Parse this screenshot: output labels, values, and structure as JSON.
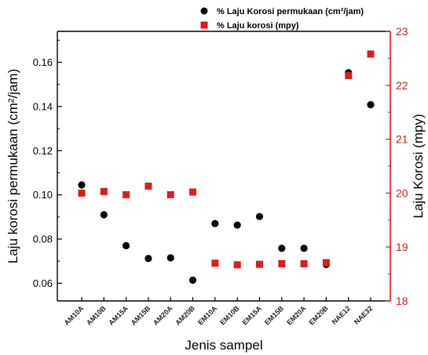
{
  "chart_data": {
    "type": "scatter",
    "categories": [
      "AM10A",
      "AM10B",
      "AM15A",
      "AM15B",
      "AM20A",
      "AM20B",
      "EM10A",
      "EM10B",
      "EM15A",
      "EM15B",
      "EM20A",
      "EM20B",
      "NAE12",
      "NAE32"
    ],
    "xlabel": "Jenis sampel",
    "ylabel": "Laju korosi permukaan (cm²/jam)",
    "y2label": "Laju Korosi (mpy)",
    "ylim": [
      0.052,
      0.174
    ],
    "y2lim": [
      18,
      23
    ],
    "yticks": [
      "0.06",
      "0.08",
      "0.10",
      "0.12",
      "0.14",
      "0.16"
    ],
    "y2ticks": [
      "18",
      "19",
      "20",
      "21",
      "22",
      "23"
    ],
    "grid": false,
    "legend_position": "top-right",
    "series": [
      {
        "name": "% Laju Korosi permukaan (cm²/jam)",
        "axis": "left",
        "marker": "circle",
        "color": "#000000",
        "values": [
          0.1045,
          0.091,
          0.077,
          0.0712,
          0.0715,
          0.0614,
          0.087,
          0.0863,
          0.0902,
          0.0758,
          0.0758,
          0.0685,
          0.1553,
          0.1408
        ]
      },
      {
        "name": "% Laju korosi (mpy)",
        "axis": "right",
        "marker": "square",
        "color": "#dd1c1c",
        "values": [
          20.0,
          20.03,
          19.97,
          20.13,
          19.97,
          20.02,
          18.7,
          18.67,
          18.68,
          18.69,
          18.69,
          18.71,
          22.18,
          22.58
        ]
      }
    ]
  }
}
